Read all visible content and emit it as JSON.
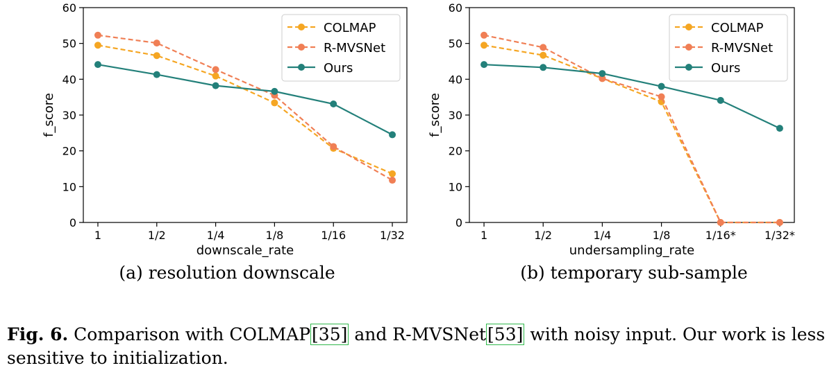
{
  "chart_data": [
    {
      "type": "line",
      "subcaption": "(a) resolution downscale",
      "xlabel": "downscale_rate",
      "ylabel": "f_score",
      "categories": [
        "1",
        "1/2",
        "1/4",
        "1/8",
        "1/16",
        "1/32"
      ],
      "ylim": [
        0,
        60
      ],
      "yticks": [
        0,
        10,
        20,
        30,
        40,
        50,
        60
      ],
      "grid": false,
      "legend": "top-right",
      "series": [
        {
          "name": "COLMAP",
          "values": [
            49.5,
            46.6,
            40.9,
            33.4,
            20.7,
            13.6
          ],
          "color": "#f5a623",
          "dash": true
        },
        {
          "name": "R-MVSNet",
          "values": [
            52.3,
            50.1,
            42.7,
            35.5,
            21.2,
            11.8
          ],
          "color": "#f07f55",
          "dash": true
        },
        {
          "name": "Ours",
          "values": [
            44.1,
            41.3,
            38.2,
            36.6,
            33.1,
            24.5
          ],
          "color": "#23807a",
          "dash": false
        }
      ]
    },
    {
      "type": "line",
      "subcaption": "(b) temporary sub-sample",
      "xlabel": "undersampling_rate",
      "ylabel": "f_score",
      "categories": [
        "1",
        "1/2",
        "1/4",
        "1/8",
        "1/16*",
        "1/32*"
      ],
      "ylim": [
        0,
        60
      ],
      "yticks": [
        0,
        10,
        20,
        30,
        40,
        50,
        60
      ],
      "grid": false,
      "legend": "top-right",
      "series": [
        {
          "name": "COLMAP",
          "values": [
            49.5,
            46.7,
            40.2,
            33.7,
            0,
            0
          ],
          "color": "#f5a623",
          "dash": true
        },
        {
          "name": "R-MVSNet",
          "values": [
            52.3,
            48.9,
            40.2,
            35.1,
            0,
            0
          ],
          "color": "#f07f55",
          "dash": true
        },
        {
          "name": "Ours",
          "values": [
            44.1,
            43.3,
            41.6,
            38.0,
            34.1,
            26.3
          ],
          "color": "#23807a",
          "dash": false
        }
      ]
    }
  ],
  "caption": {
    "label": "Fig. 6.",
    "text_1": " Comparison with COLMAP",
    "cite_1": "[35]",
    "text_2": " and R-MVSNet",
    "cite_2": "[53]",
    "text_3": " with noisy input. Our work is less sensitive to initialization."
  }
}
